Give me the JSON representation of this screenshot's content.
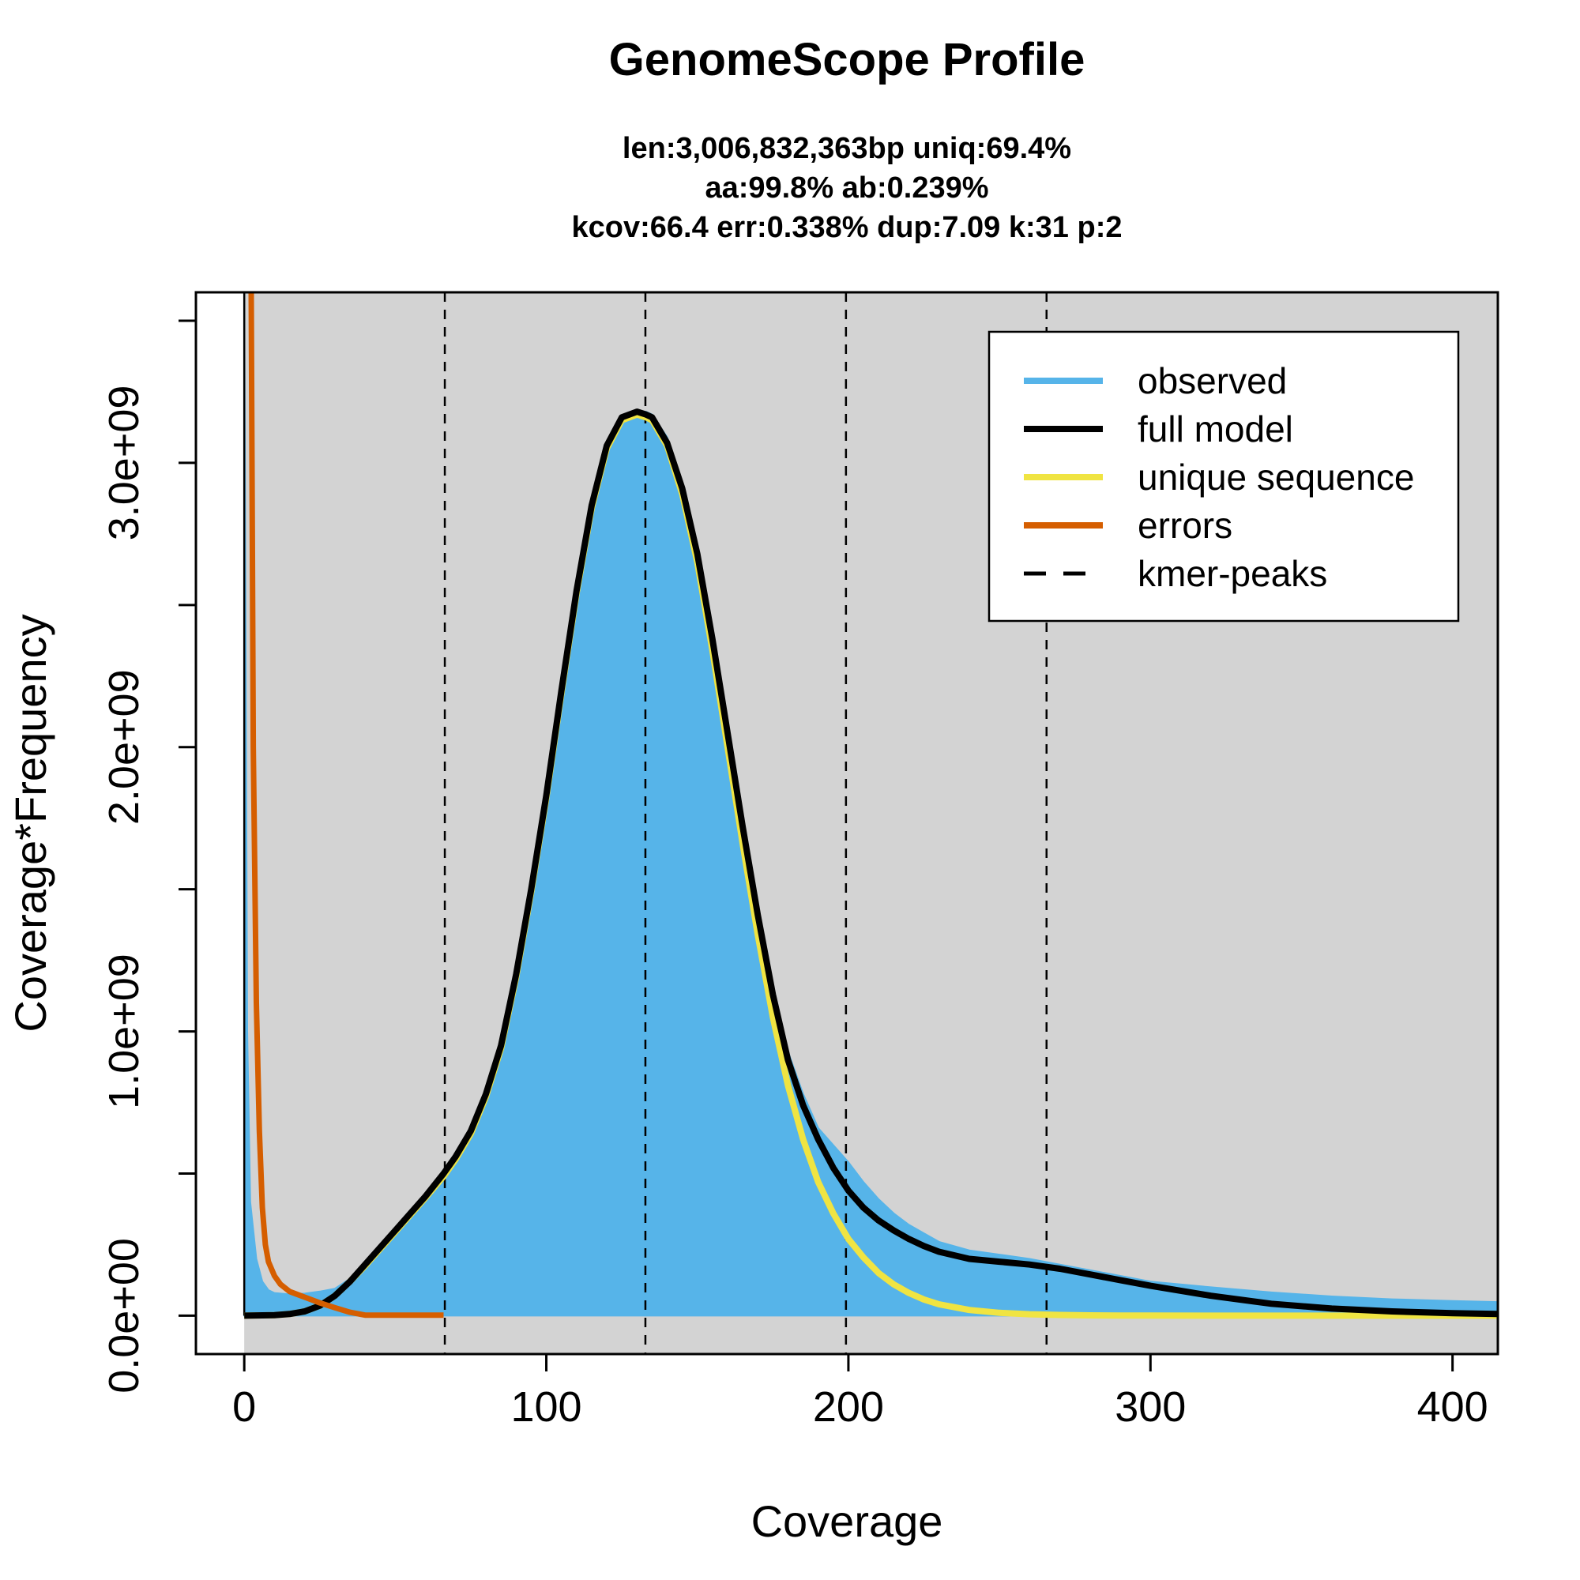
{
  "chart_data": {
    "type": "area",
    "title": "GenomeScope Profile",
    "subtitle_lines": [
      "len:3,006,832,363bp uniq:69.4%",
      "aa:99.8% ab:0.239%",
      "kcov:66.4 err:0.338%  dup:7.09  k:31 p:2"
    ],
    "xlabel": "Coverage",
    "ylabel": "Coverage*Frequency",
    "xlim": [
      -16,
      415
    ],
    "ylim": [
      -135000000,
      3600000000
    ],
    "x_ticks": [
      0,
      100,
      200,
      300,
      400
    ],
    "x_tick_labels": [
      "0",
      "100",
      "200",
      "300",
      "400"
    ],
    "y_ticks": [
      0,
      1000000000,
      2000000000,
      3000000000
    ],
    "y_tick_labels": [
      "0.0e+00",
      "1.0e+09",
      "2.0e+09",
      "3.0e+09"
    ],
    "y_minor_ticks": [
      500000000,
      1500000000,
      2500000000,
      3500000000
    ],
    "background_color": "#d3d3d3",
    "grid": false,
    "legend_position": "top-right",
    "legend": [
      {
        "label": "observed",
        "color": "#56b4e9",
        "style": "solid"
      },
      {
        "label": "full model",
        "color": "#000000",
        "style": "solid"
      },
      {
        "label": "unique sequence",
        "color": "#f0e442",
        "style": "solid"
      },
      {
        "label": "errors",
        "color": "#d55e00",
        "style": "solid"
      },
      {
        "label": "kmer-peaks",
        "color": "#000000",
        "style": "dashed"
      }
    ],
    "kmer_peaks": [
      66.4,
      132.8,
      199.2,
      265.6
    ],
    "series": [
      {
        "name": "observed",
        "color": "#56b4e9",
        "x": [
          0,
          1,
          2,
          4,
          6,
          8,
          10,
          15,
          20,
          25,
          30,
          35,
          40,
          45,
          50,
          55,
          60,
          66,
          70,
          75,
          80,
          85,
          90,
          95,
          100,
          105,
          110,
          115,
          120,
          125,
          130,
          133,
          135,
          140,
          145,
          150,
          155,
          160,
          165,
          170,
          175,
          180,
          185,
          190,
          195,
          200,
          205,
          210,
          215,
          220,
          225,
          230,
          240,
          250,
          260,
          270,
          280,
          290,
          300,
          320,
          340,
          360,
          380,
          400,
          415
        ],
        "y": [
          3600000000,
          1000000000,
          400000000,
          200000000,
          120000000,
          90000000,
          80000000,
          75000000,
          78000000,
          85000000,
          95000000,
          130000000,
          190000000,
          250000000,
          310000000,
          370000000,
          420000000,
          500000000,
          560000000,
          650000000,
          780000000,
          950000000,
          1200000000,
          1500000000,
          1830000000,
          2200000000,
          2550000000,
          2850000000,
          3060000000,
          3160000000,
          3180000000,
          3180000000,
          3170000000,
          3090000000,
          2930000000,
          2690000000,
          2390000000,
          2060000000,
          1730000000,
          1420000000,
          1150000000,
          930000000,
          780000000,
          660000000,
          600000000,
          540000000,
          470000000,
          410000000,
          360000000,
          320000000,
          290000000,
          260000000,
          230000000,
          215000000,
          200000000,
          180000000,
          160000000,
          140000000,
          120000000,
          100000000,
          82000000,
          68000000,
          58000000,
          52000000,
          48000000
        ]
      },
      {
        "name": "full model",
        "color": "#000000",
        "x": [
          0,
          10,
          15,
          20,
          25,
          30,
          35,
          40,
          45,
          50,
          55,
          60,
          66,
          70,
          75,
          80,
          85,
          90,
          95,
          100,
          105,
          110,
          115,
          120,
          125,
          130,
          133,
          135,
          140,
          145,
          150,
          155,
          160,
          165,
          170,
          175,
          180,
          185,
          190,
          195,
          200,
          205,
          210,
          215,
          220,
          225,
          230,
          240,
          250,
          260,
          270,
          280,
          290,
          300,
          320,
          340,
          360,
          380,
          400,
          415
        ],
        "y": [
          0,
          2000000,
          6000000,
          15000000,
          35000000,
          70000000,
          120000000,
          180000000,
          240000000,
          300000000,
          360000000,
          420000000,
          500000000,
          560000000,
          650000000,
          780000000,
          950000000,
          1200000000,
          1500000000,
          1830000000,
          2200000000,
          2550000000,
          2850000000,
          3060000000,
          3160000000,
          3180000000,
          3170000000,
          3160000000,
          3070000000,
          2910000000,
          2680000000,
          2380000000,
          2050000000,
          1720000000,
          1410000000,
          1130000000,
          900000000,
          740000000,
          620000000,
          520000000,
          440000000,
          380000000,
          335000000,
          300000000,
          270000000,
          245000000,
          225000000,
          200000000,
          190000000,
          180000000,
          165000000,
          145000000,
          125000000,
          105000000,
          70000000,
          42000000,
          25000000,
          15000000,
          9000000,
          6000000
        ]
      },
      {
        "name": "unique sequence",
        "color": "#f0e442",
        "x": [
          0,
          10,
          15,
          20,
          25,
          30,
          35,
          40,
          45,
          50,
          55,
          60,
          66,
          70,
          75,
          80,
          85,
          90,
          95,
          100,
          105,
          110,
          115,
          120,
          125,
          130,
          133,
          135,
          140,
          145,
          150,
          155,
          160,
          165,
          170,
          175,
          180,
          185,
          190,
          195,
          200,
          205,
          210,
          215,
          220,
          225,
          230,
          240,
          250,
          260,
          270,
          280,
          290,
          300,
          340,
          380,
          415
        ],
        "y": [
          0,
          2000000,
          6000000,
          15000000,
          35000000,
          70000000,
          120000000,
          175000000,
          235000000,
          295000000,
          355000000,
          415000000,
          490000000,
          550000000,
          640000000,
          770000000,
          940000000,
          1190000000,
          1490000000,
          1820000000,
          2190000000,
          2540000000,
          2840000000,
          3050000000,
          3150000000,
          3170000000,
          3160000000,
          3150000000,
          3060000000,
          2890000000,
          2650000000,
          2340000000,
          2000000000,
          1660000000,
          1340000000,
          1050000000,
          810000000,
          620000000,
          470000000,
          360000000,
          270000000,
          205000000,
          150000000,
          110000000,
          80000000,
          57000000,
          40000000,
          20000000,
          10000000,
          5000000,
          2500000,
          1200000,
          600000,
          300000,
          50000,
          10000,
          0
        ]
      },
      {
        "name": "errors",
        "color": "#d55e00",
        "x": [
          2.3,
          3,
          4,
          5,
          6,
          7,
          8,
          10,
          12,
          15,
          20,
          25,
          30,
          35,
          40,
          50,
          60,
          66
        ],
        "y": [
          3600000000,
          2000000000,
          1100000000,
          650000000,
          380000000,
          250000000,
          190000000,
          140000000,
          110000000,
          85000000,
          65000000,
          45000000,
          28000000,
          12000000,
          2000000,
          2000000,
          2000000,
          2000000
        ]
      }
    ]
  }
}
